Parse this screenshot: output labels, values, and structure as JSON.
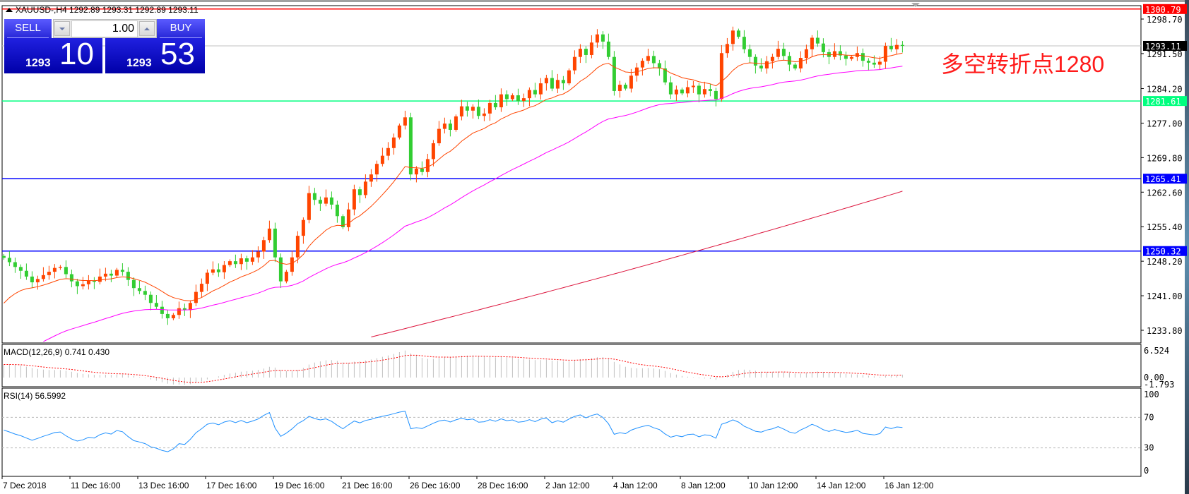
{
  "window": {
    "symbol_line": "XAUUSD-,H4  1292.89 1293.31 1292.89 1293.11"
  },
  "trade_panel": {
    "sell_label": "SELL",
    "buy_label": "BUY",
    "lot": "1.00",
    "sell_price_prefix": "1293",
    "sell_price_main": "10",
    "buy_price_prefix": "1293",
    "buy_price_main": "53",
    "color": "#2828d8"
  },
  "annotation": {
    "text": "多空转折点1280",
    "color": "#ff1a1a"
  },
  "indicators": {
    "macd_label": "MACD(12,26,9) 0.741 0.430",
    "rsi_label": "RSI(14) 56.5992"
  },
  "chart_data": {
    "type": "candlestick",
    "price_ticks": [
      "1298.70",
      "1291.50",
      "1284.20",
      "1277.00",
      "1269.80",
      "1262.60",
      "1255.40",
      "1248.20",
      "1241.00",
      "1233.80"
    ],
    "price_range": [
      1231.7,
      1301.7
    ],
    "hlines": [
      {
        "value": 1300.79,
        "label": "1300.79",
        "color": "#ff0000"
      },
      {
        "value": 1293.11,
        "label": "1293.11",
        "color": "#c0c0c0",
        "label_bg": "#000000"
      },
      {
        "value": 1281.61,
        "label": "1281.61",
        "color": "#00ff7f"
      },
      {
        "value": 1265.41,
        "label": "1265.41",
        "color": "#0000ff"
      },
      {
        "value": 1250.32,
        "label": "1250.32",
        "color": "#0000ff"
      }
    ],
    "x_labels": [
      "7 Dec 2018",
      "11 Dec 16:00",
      "13 Dec 16:00",
      "17 Dec 16:00",
      "19 Dec 16:00",
      "21 Dec 16:00",
      "26 Dec 16:00",
      "28 Dec 16:00",
      "2 Jan 12:00",
      "4 Jan 12:00",
      "8 Jan 12:00",
      "10 Jan 12:00",
      "14 Jan 12:00",
      "16 Jan 12:00"
    ],
    "up_color": "#ff4500",
    "down_color": "#32cd32",
    "close": [
      1248.9,
      1248.0,
      1247.0,
      1246.2,
      1245.0,
      1243.8,
      1244.5,
      1245.3,
      1246.0,
      1246.8,
      1247.0,
      1245.5,
      1244.0,
      1243.0,
      1243.4,
      1244.2,
      1243.9,
      1245.0,
      1245.6,
      1245.2,
      1246.4,
      1246.0,
      1244.3,
      1242.6,
      1242.0,
      1241.2,
      1239.5,
      1238.7,
      1237.2,
      1236.3,
      1237.0,
      1238.4,
      1238.0,
      1239.5,
      1241.8,
      1243.5,
      1245.8,
      1246.5,
      1245.9,
      1247.4,
      1248.2,
      1247.6,
      1248.8,
      1248.1,
      1249.0,
      1250.2,
      1252.6,
      1255.0,
      1249.0,
      1244.0,
      1246.0,
      1249.0,
      1253.5,
      1256.8,
      1262.4,
      1261.0,
      1260.2,
      1261.5,
      1260.0,
      1257.6,
      1255.3,
      1259.0,
      1263.2,
      1262.0,
      1264.8,
      1266.3,
      1268.5,
      1270.2,
      1271.8,
      1274.0,
      1276.5,
      1278.2,
      1266.3,
      1267.5,
      1266.8,
      1269.5,
      1272.8,
      1275.8,
      1276.9,
      1275.6,
      1278.4,
      1280.5,
      1279.6,
      1280.4,
      1278.5,
      1279.0,
      1281.2,
      1280.3,
      1283.0,
      1282.0,
      1282.8,
      1281.6,
      1282.2,
      1283.9,
      1283.0,
      1285.3,
      1286.4,
      1284.2,
      1286.0,
      1285.3,
      1288.0,
      1290.8,
      1292.5,
      1291.2,
      1293.8,
      1295.5,
      1294.0,
      1290.8,
      1283.7,
      1285.0,
      1284.2,
      1286.9,
      1288.6,
      1290.0,
      1291.0,
      1289.5,
      1288.4,
      1285.5,
      1283.0,
      1284.0,
      1283.2,
      1284.5,
      1284.8,
      1283.0,
      1284.1,
      1283.7,
      1282.0,
      1291.6,
      1293.5,
      1296.3,
      1295.0,
      1292.4,
      1290.8,
      1289.0,
      1288.4,
      1289.9,
      1290.8,
      1292.5,
      1291.0,
      1289.2,
      1288.4,
      1290.6,
      1292.4,
      1294.8,
      1293.6,
      1291.8,
      1290.8,
      1292.0,
      1291.1,
      1290.4,
      1290.8,
      1291.6,
      1290.0,
      1289.6,
      1289.2,
      1289.8,
      1293.1,
      1292.4,
      1293.3,
      1293.11
    ],
    "ma_fast_color": "#ff4500",
    "ma_mid_color": "#ff00ff",
    "ma_slow_color": "#dc143c",
    "ma_slow_points": [
      [
        65,
        1232.4
      ],
      [
        159,
        1262.8
      ]
    ],
    "macd_ticks": [
      "6.524",
      "0.00",
      "-1.793"
    ],
    "macd_hist_color": "#c0c0c0",
    "macd_signal_color": "#ff0000",
    "rsi_ticks": [
      "100",
      "70",
      "30",
      "0"
    ],
    "rsi_levels": [
      70,
      30
    ],
    "rsi_color": "#1e90ff"
  }
}
